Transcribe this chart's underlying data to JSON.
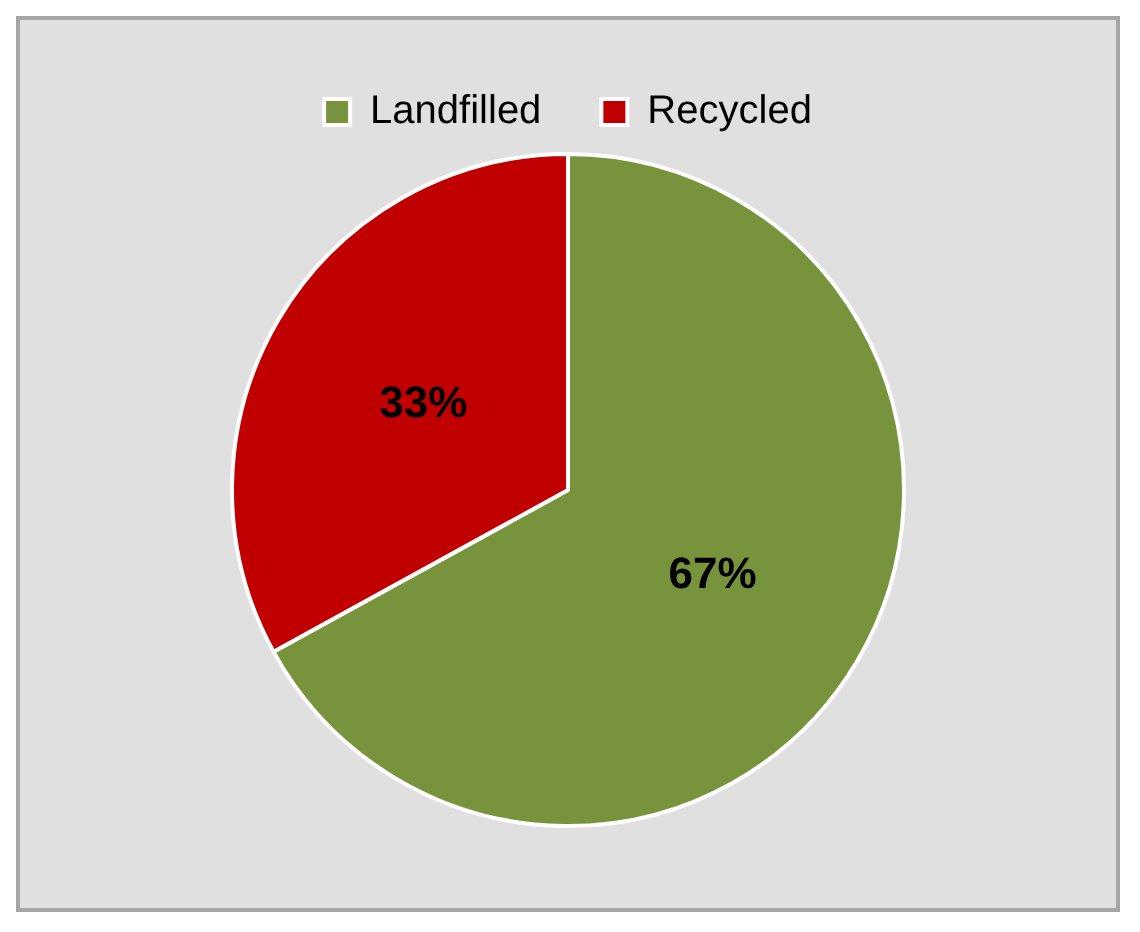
{
  "chart_data": {
    "type": "pie",
    "categories": [
      "Landfilled",
      "Recycled"
    ],
    "values": [
      67,
      33
    ],
    "colors": [
      "#77933c",
      "#c00000"
    ],
    "value_labels": [
      "67%",
      "33%"
    ],
    "legend": "top"
  }
}
